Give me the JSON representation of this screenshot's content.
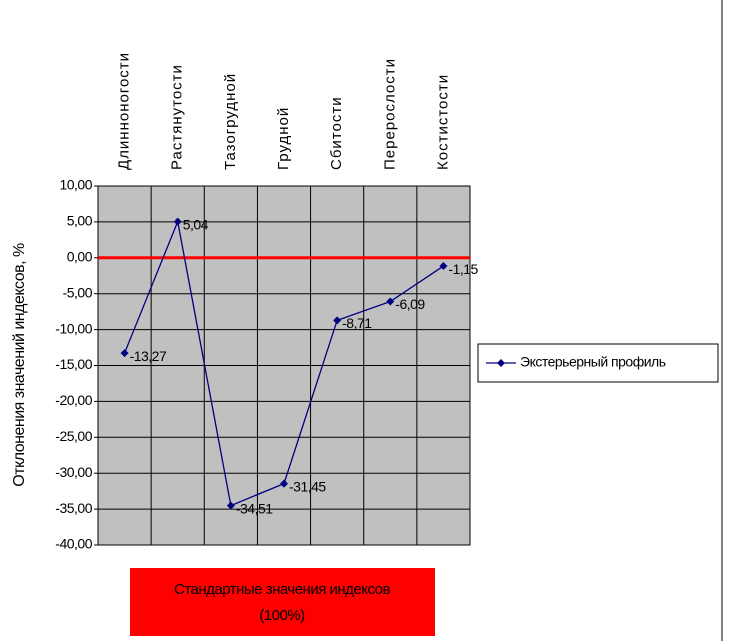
{
  "chart_data": {
    "type": "line",
    "y_label": "Отклонения значений индексов, %",
    "categories": [
      "Длинноногости",
      "Растянутости",
      "Тазогрудной",
      "Грудной",
      "Сбитости",
      "Перерослости",
      "Костистости"
    ],
    "series": [
      {
        "name": "Экстерьерный профиль",
        "color": "#000080",
        "values": [
          -13.27,
          5.04,
          -34.51,
          -31.45,
          -8.71,
          -6.09,
          -1.15
        ],
        "value_labels": [
          "-13,27",
          "5,04",
          "-34,51",
          "-31,45",
          "-8,71",
          "-6,09",
          "-1,15"
        ]
      }
    ],
    "ylim": [
      -40,
      10
    ],
    "yticks": [
      {
        "value": 10,
        "label": "10,00"
      },
      {
        "value": 5,
        "label": "5,00"
      },
      {
        "value": 0,
        "label": "0,00"
      },
      {
        "value": -5,
        "label": "-5,00"
      },
      {
        "value": -10,
        "label": "-10,00"
      },
      {
        "value": -15,
        "label": "-15,00"
      },
      {
        "value": -20,
        "label": "-20,00"
      },
      {
        "value": -25,
        "label": "-25,00"
      },
      {
        "value": -30,
        "label": "-30,00"
      },
      {
        "value": -35,
        "label": "-35,00"
      },
      {
        "value": -40,
        "label": "-40,00"
      }
    ],
    "grid": true,
    "plot_background": "#c0c0c0",
    "hline": {
      "value": 0,
      "color": "#ff0000"
    },
    "legend": "right",
    "annotation": [
      "Стандартные значения индексов",
      "(100%)"
    ],
    "annotation_color": "#ff0000"
  }
}
